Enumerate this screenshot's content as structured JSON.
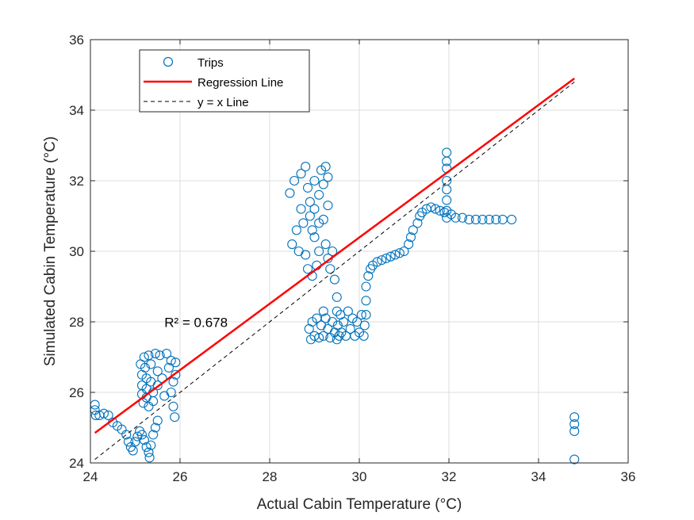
{
  "chart_data": {
    "type": "scatter",
    "xlabel": "Actual Cabin Temperature (°C)",
    "ylabel": "Simulated Cabin Temperature (°C)",
    "xlim": [
      24,
      36
    ],
    "ylim": [
      24,
      36
    ],
    "xticks": [
      "24",
      "26",
      "28",
      "30",
      "32",
      "34",
      "36"
    ],
    "yticks": [
      "24",
      "26",
      "28",
      "30",
      "32",
      "34",
      "36"
    ],
    "grid": true,
    "legend_position": "top-left",
    "annotation": {
      "text": "R² = 0.678",
      "x": 25.65,
      "y": 27.85
    },
    "series": [
      {
        "name": "Trips",
        "kind": "markers",
        "color": "#0072BD",
        "points": [
          [
            24.1,
            25.65
          ],
          [
            24.1,
            25.5
          ],
          [
            24.12,
            25.35
          ],
          [
            24.2,
            25.35
          ],
          [
            24.3,
            25.4
          ],
          [
            24.4,
            25.35
          ],
          [
            24.5,
            25.15
          ],
          [
            24.6,
            25.05
          ],
          [
            24.7,
            24.95
          ],
          [
            24.8,
            24.8
          ],
          [
            24.85,
            24.6
          ],
          [
            24.9,
            24.45
          ],
          [
            24.95,
            24.35
          ],
          [
            25.0,
            24.6
          ],
          [
            25.05,
            24.75
          ],
          [
            25.1,
            24.9
          ],
          [
            25.15,
            24.8
          ],
          [
            25.2,
            24.65
          ],
          [
            25.25,
            24.45
          ],
          [
            25.3,
            24.3
          ],
          [
            25.32,
            24.15
          ],
          [
            25.35,
            24.5
          ],
          [
            25.4,
            24.8
          ],
          [
            25.45,
            25.0
          ],
          [
            25.5,
            25.2
          ],
          [
            25.12,
            26.8
          ],
          [
            25.15,
            26.5
          ],
          [
            25.15,
            26.2
          ],
          [
            25.15,
            25.95
          ],
          [
            25.18,
            25.7
          ],
          [
            25.2,
            27.0
          ],
          [
            25.22,
            26.7
          ],
          [
            25.25,
            26.4
          ],
          [
            25.25,
            26.1
          ],
          [
            25.25,
            25.85
          ],
          [
            25.3,
            25.6
          ],
          [
            25.3,
            27.05
          ],
          [
            25.35,
            26.8
          ],
          [
            25.35,
            26.3
          ],
          [
            25.4,
            26.0
          ],
          [
            25.4,
            25.75
          ],
          [
            25.45,
            27.1
          ],
          [
            25.5,
            26.6
          ],
          [
            25.5,
            26.2
          ],
          [
            25.55,
            27.05
          ],
          [
            25.6,
            26.4
          ],
          [
            25.65,
            25.9
          ],
          [
            25.7,
            27.1
          ],
          [
            25.75,
            26.7
          ],
          [
            25.8,
            26.9
          ],
          [
            25.8,
            26.0
          ],
          [
            25.85,
            26.3
          ],
          [
            25.85,
            25.6
          ],
          [
            25.88,
            25.3
          ],
          [
            25.9,
            26.5
          ],
          [
            25.9,
            26.85
          ],
          [
            28.45,
            31.65
          ],
          [
            28.5,
            30.2
          ],
          [
            28.55,
            32.0
          ],
          [
            28.6,
            30.6
          ],
          [
            28.65,
            30.0
          ],
          [
            28.7,
            32.2
          ],
          [
            28.7,
            31.2
          ],
          [
            28.75,
            30.8
          ],
          [
            28.8,
            32.4
          ],
          [
            28.8,
            29.9
          ],
          [
            28.85,
            29.5
          ],
          [
            28.85,
            31.8
          ],
          [
            28.9,
            31.4
          ],
          [
            28.9,
            31.0
          ],
          [
            28.95,
            30.6
          ],
          [
            28.95,
            29.3
          ],
          [
            29.0,
            32.0
          ],
          [
            29.0,
            31.2
          ],
          [
            29.0,
            30.4
          ],
          [
            29.05,
            29.6
          ],
          [
            29.1,
            31.6
          ],
          [
            29.1,
            30.8
          ],
          [
            29.1,
            30.0
          ],
          [
            29.15,
            32.3
          ],
          [
            29.2,
            31.9
          ],
          [
            29.2,
            30.9
          ],
          [
            29.25,
            32.4
          ],
          [
            29.25,
            30.2
          ],
          [
            29.3,
            31.3
          ],
          [
            29.3,
            29.8
          ],
          [
            29.3,
            32.1
          ],
          [
            29.35,
            29.5
          ],
          [
            29.4,
            30.0
          ],
          [
            29.45,
            29.2
          ],
          [
            29.5,
            28.7
          ],
          [
            29.5,
            28.3
          ],
          [
            29.52,
            27.9
          ],
          [
            29.55,
            27.6
          ],
          [
            29.5,
            27.5
          ],
          [
            29.45,
            27.7
          ],
          [
            29.4,
            28.0
          ],
          [
            29.35,
            27.55
          ],
          [
            29.3,
            27.8
          ],
          [
            29.25,
            28.1
          ],
          [
            29.2,
            27.6
          ],
          [
            29.2,
            28.3
          ],
          [
            29.15,
            27.9
          ],
          [
            29.1,
            27.55
          ],
          [
            29.05,
            28.1
          ],
          [
            29.0,
            27.6
          ],
          [
            28.95,
            28.0
          ],
          [
            28.92,
            27.5
          ],
          [
            28.88,
            27.8
          ],
          [
            29.58,
            28.2
          ],
          [
            29.6,
            27.7
          ],
          [
            29.65,
            28.0
          ],
          [
            29.7,
            27.6
          ],
          [
            29.75,
            28.3
          ],
          [
            29.8,
            27.8
          ],
          [
            29.85,
            28.1
          ],
          [
            29.9,
            27.6
          ],
          [
            29.95,
            28.0
          ],
          [
            30.0,
            27.7
          ],
          [
            30.05,
            28.2
          ],
          [
            30.1,
            27.6
          ],
          [
            30.12,
            27.9
          ],
          [
            30.15,
            28.2
          ],
          [
            30.15,
            28.6
          ],
          [
            30.15,
            29.0
          ],
          [
            30.2,
            29.3
          ],
          [
            30.25,
            29.5
          ],
          [
            30.3,
            29.6
          ],
          [
            30.4,
            29.7
          ],
          [
            30.5,
            29.75
          ],
          [
            30.6,
            29.8
          ],
          [
            30.7,
            29.85
          ],
          [
            30.8,
            29.9
          ],
          [
            30.9,
            29.95
          ],
          [
            31.0,
            30.0
          ],
          [
            31.1,
            30.2
          ],
          [
            31.15,
            30.4
          ],
          [
            31.2,
            30.6
          ],
          [
            31.3,
            30.8
          ],
          [
            31.35,
            31.0
          ],
          [
            31.4,
            31.1
          ],
          [
            31.5,
            31.2
          ],
          [
            31.6,
            31.25
          ],
          [
            31.7,
            31.2
          ],
          [
            31.8,
            31.15
          ],
          [
            31.9,
            31.1
          ],
          [
            31.95,
            32.8
          ],
          [
            31.95,
            32.55
          ],
          [
            31.95,
            32.35
          ],
          [
            31.95,
            32.0
          ],
          [
            31.95,
            31.75
          ],
          [
            31.95,
            31.45
          ],
          [
            31.95,
            31.15
          ],
          [
            31.95,
            30.95
          ],
          [
            32.05,
            31.05
          ],
          [
            32.15,
            30.95
          ],
          [
            32.3,
            30.95
          ],
          [
            32.45,
            30.9
          ],
          [
            32.6,
            30.9
          ],
          [
            32.75,
            30.9
          ],
          [
            32.9,
            30.9
          ],
          [
            33.05,
            30.9
          ],
          [
            33.2,
            30.9
          ],
          [
            33.4,
            30.9
          ],
          [
            34.8,
            25.3
          ],
          [
            34.8,
            25.1
          ],
          [
            34.8,
            24.9
          ],
          [
            34.8,
            24.1
          ]
        ]
      },
      {
        "name": "Regression Line",
        "kind": "line",
        "color": "#FF0000",
        "points": [
          [
            24.1,
            24.85
          ],
          [
            34.8,
            34.9
          ]
        ]
      },
      {
        "name": "y = x Line",
        "kind": "dashed-line",
        "color": "#000000",
        "points": [
          [
            24.1,
            24.1
          ],
          [
            34.8,
            34.8
          ]
        ]
      }
    ]
  }
}
